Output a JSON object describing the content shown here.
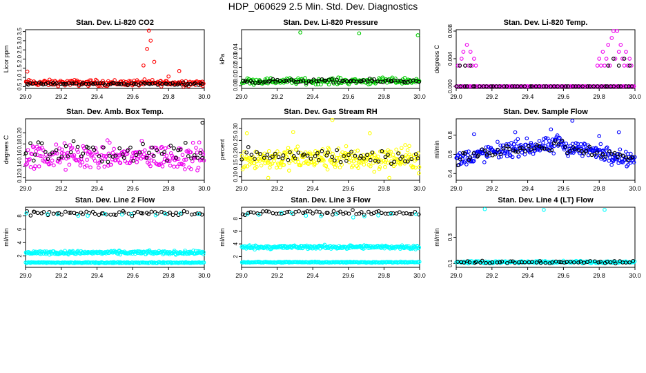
{
  "figure": {
    "title": "HDP_060629  2.5 Min. Std. Dev. Diagnostics"
  },
  "chart_data": [
    {
      "type": "scatter",
      "title": "Stan. Dev. Li-820 CO2",
      "xlabel": "",
      "ylabel": "Licor ppm",
      "xlim": [
        29.0,
        30.0
      ],
      "ylim": [
        0.4,
        3.6
      ],
      "xticks": [
        "29.0",
        "29.2",
        "29.4",
        "29.6",
        "29.8",
        "30.0"
      ],
      "yticks": [
        [
          "0.5",
          0.5
        ],
        [
          "1.0",
          1.0
        ],
        [
          "1.5",
          1.5
        ],
        [
          "2.0",
          2.0
        ],
        [
          "2.5",
          2.5
        ],
        [
          "3.0",
          3.0
        ],
        [
          "3.5",
          3.5
        ]
      ],
      "series": [
        {
          "name": "main",
          "color": "#ff0000",
          "base": 0.7,
          "noise": 0.12,
          "count": 220,
          "extra": [
            [
              29.69,
              3.55
            ],
            [
              29.7,
              3.0
            ],
            [
              29.68,
              2.55
            ],
            [
              29.72,
              1.85
            ],
            [
              29.66,
              1.65
            ],
            [
              29.8,
              1.05
            ],
            [
              29.86,
              1.35
            ],
            [
              29.01,
              1.32
            ]
          ]
        },
        {
          "name": "hourly",
          "color": "#000000",
          "base": 0.65,
          "noise": 0.05,
          "count": 75
        }
      ]
    },
    {
      "type": "scatter",
      "title": "Stan. Dev. Li-820 Pressure",
      "xlabel": "",
      "ylabel": "kPa",
      "xlim": [
        29.0,
        30.0
      ],
      "ylim": [
        -0.003,
        0.061
      ],
      "xticks": [
        "29.0",
        "29.2",
        "29.4",
        "29.6",
        "29.8",
        "30.0"
      ],
      "yticks": [
        [
          "0.00",
          0.0
        ],
        [
          "0.01",
          0.01
        ],
        [
          "0.02",
          0.02
        ],
        [
          "0.03",
          0.03
        ],
        [
          "0.04",
          0.04
        ]
      ],
      "series": [
        {
          "name": "main",
          "color": "#00cc00",
          "base": 0.005,
          "noise": 0.0025,
          "count": 200,
          "extra": [
            [
              29.33,
              0.058
            ],
            [
              29.66,
              0.057
            ],
            [
              29.99,
              0.055
            ]
          ]
        },
        {
          "name": "hourly",
          "color": "#000000",
          "base": 0.005,
          "noise": 0.0015,
          "count": 70
        }
      ]
    },
    {
      "type": "scatter",
      "title": "Stan. Dev. Li-820 Temp.",
      "xlabel": "",
      "ylabel": "degrees C",
      "xlim": [
        29.0,
        30.0
      ],
      "ylim": [
        -0.0003,
        0.0082
      ],
      "xticks": [
        "29.0",
        "29.2",
        "29.4",
        "29.6",
        "29.8",
        "30.0"
      ],
      "yticks": [
        [
          "0.000",
          0.0
        ],
        [
          "0.004",
          0.004
        ],
        [
          "0.008",
          0.008
        ]
      ],
      "series": [
        {
          "name": "main",
          "color": "#ee00ee",
          "base": 0.0,
          "noise": 0.0,
          "count": 150,
          "extra": [
            [
              29.01,
              0.003
            ],
            [
              29.02,
              0.003
            ],
            [
              29.03,
              0.004
            ],
            [
              29.04,
              0.005
            ],
            [
              29.05,
              0.003
            ],
            [
              29.06,
              0.006
            ],
            [
              29.07,
              0.003
            ],
            [
              29.08,
              0.005
            ],
            [
              29.09,
              0.003
            ],
            [
              29.1,
              0.004
            ],
            [
              29.11,
              0.003
            ],
            [
              29.79,
              0.003
            ],
            [
              29.8,
              0.004
            ],
            [
              29.81,
              0.003
            ],
            [
              29.82,
              0.005
            ],
            [
              29.83,
              0.003
            ],
            [
              29.84,
              0.004
            ],
            [
              29.85,
              0.006
            ],
            [
              29.86,
              0.003
            ],
            [
              29.87,
              0.007
            ],
            [
              29.88,
              0.008
            ],
            [
              29.89,
              0.004
            ],
            [
              29.9,
              0.008
            ],
            [
              29.91,
              0.005
            ],
            [
              29.92,
              0.006
            ],
            [
              29.93,
              0.004
            ],
            [
              29.94,
              0.003
            ],
            [
              29.95,
              0.005
            ],
            [
              29.96,
              0.003
            ],
            [
              29.97,
              0.004
            ],
            [
              29.98,
              0.003
            ]
          ]
        },
        {
          "name": "hourly",
          "color": "#000000",
          "base": 0.0,
          "noise": 0.0,
          "count": 50,
          "extra": [
            [
              29.02,
              0.003
            ],
            [
              29.05,
              0.003
            ],
            [
              29.08,
              0.003
            ],
            [
              29.85,
              0.003
            ],
            [
              29.88,
              0.004
            ],
            [
              29.91,
              0.003
            ],
            [
              29.94,
              0.004
            ],
            [
              29.97,
              0.003
            ]
          ]
        }
      ]
    },
    {
      "type": "scatter",
      "title": "Stan. Dev. Amb. Box Temp.",
      "xlabel": "",
      "ylabel": "degrees C",
      "xlim": [
        29.0,
        30.0
      ],
      "ylim": [
        0.115,
        0.225
      ],
      "xticks": [
        "29.0",
        "29.2",
        "29.4",
        "29.6",
        "29.8",
        "30.0"
      ],
      "yticks": [
        [
          "0.12",
          0.12
        ],
        [
          "0.14",
          0.14
        ],
        [
          "0.16",
          0.16
        ],
        [
          "0.18",
          0.18
        ],
        [
          "0.20",
          0.2
        ]
      ],
      "series": [
        {
          "name": "main",
          "color": "#ee00ee",
          "base": 0.157,
          "noise": 0.017,
          "count": 230
        },
        {
          "name": "hourly",
          "color": "#000000",
          "base": 0.165,
          "noise": 0.014,
          "count": 60,
          "extra": [
            [
              29.99,
              0.218
            ]
          ]
        }
      ]
    },
    {
      "type": "scatter",
      "title": "Stan. Dev. Gas Stream RH",
      "xlabel": "",
      "ylabel": "percent",
      "xlim": [
        29.0,
        30.0
      ],
      "ylim": [
        0.085,
        0.34
      ],
      "xticks": [
        "29.0",
        "29.2",
        "29.4",
        "29.6",
        "29.8",
        "30.0"
      ],
      "yticks": [
        [
          "0.10",
          0.1
        ],
        [
          "0.15",
          0.15
        ],
        [
          "0.20",
          0.2
        ],
        [
          "0.25",
          0.25
        ],
        [
          "0.30",
          0.3
        ]
      ],
      "series": [
        {
          "name": "main",
          "color": "#ffff00",
          "base": 0.175,
          "noise": 0.035,
          "count": 280,
          "extra": [
            [
              29.51,
              0.335
            ],
            [
              29.29,
              0.285
            ],
            [
              29.03,
              0.28
            ],
            [
              29.72,
              0.28
            ],
            [
              29.15,
              0.095
            ],
            [
              29.83,
              0.095
            ]
          ]
        },
        {
          "name": "hourly",
          "color": "#000000",
          "base": 0.185,
          "noise": 0.025,
          "count": 60
        }
      ]
    },
    {
      "type": "scatter",
      "title": "Stan. Dev. Sample Flow",
      "xlabel": "",
      "ylabel": "ml/min",
      "xlim": [
        29.0,
        30.0
      ],
      "ylim": [
        0.33,
        0.97
      ],
      "xticks": [
        "29.0",
        "29.2",
        "29.4",
        "29.6",
        "29.8",
        "30.0"
      ],
      "yticks": [
        [
          "0.4",
          0.4
        ],
        [
          "0.6",
          0.6
        ],
        [
          "0.8",
          0.8
        ]
      ],
      "series": [
        {
          "name": "main",
          "color": "#0000ff",
          "base": 0.6,
          "noise": 0.06,
          "count": 280,
          "trend": "hump",
          "extra": [
            [
              29.65,
              0.95
            ],
            [
              29.53,
              0.86
            ],
            [
              29.33,
              0.83
            ],
            [
              29.91,
              0.83
            ],
            [
              29.1,
              0.81
            ],
            [
              29.8,
              0.79
            ]
          ]
        },
        {
          "name": "hourly",
          "color": "#000000",
          "base": 0.6,
          "noise": 0.04,
          "count": 65,
          "trend": "hump"
        }
      ]
    },
    {
      "type": "scatter",
      "title": "Stan. Dev. Line 2 Flow",
      "xlabel": "",
      "ylabel": "ml/min",
      "xlim": [
        29.0,
        30.0
      ],
      "ylim": [
        0.3,
        9.3
      ],
      "xticks": [
        "29.0",
        "29.2",
        "29.4",
        "29.6",
        "29.8",
        "30.0"
      ],
      "yticks": [
        [
          "2",
          2
        ],
        [
          "4",
          4
        ],
        [
          "6",
          6
        ],
        [
          "8",
          8
        ]
      ],
      "series": [
        {
          "name": "upper",
          "color": "#00ffff",
          "base": 2.5,
          "noise": 0.2,
          "count": 250
        },
        {
          "name": "lower",
          "color": "#00ffff",
          "base": 1.0,
          "noise": 0.06,
          "count": 200
        },
        {
          "name": "hourly",
          "color": "#000000",
          "base": 8.4,
          "noise": 0.3,
          "count": 60
        },
        {
          "name": "marks",
          "color": "#00ffff",
          "base": 8.2,
          "noise": 0.2,
          "count": 12
        }
      ]
    },
    {
      "type": "scatter",
      "title": "Stan. Dev. Line 3 Flow",
      "xlabel": "",
      "ylabel": "ml/min",
      "xlim": [
        29.0,
        30.0
      ],
      "ylim": [
        0.3,
        9.8
      ],
      "xticks": [
        "29.0",
        "29.2",
        "29.4",
        "29.6",
        "29.8",
        "30.0"
      ],
      "yticks": [
        [
          "2",
          2
        ],
        [
          "4",
          4
        ],
        [
          "6",
          6
        ],
        [
          "8",
          8
        ]
      ],
      "series": [
        {
          "name": "upper",
          "color": "#00ffff",
          "base": 3.5,
          "noise": 0.22,
          "count": 250
        },
        {
          "name": "lower",
          "color": "#00ffff",
          "base": 1.1,
          "noise": 0.06,
          "count": 200
        },
        {
          "name": "hourly",
          "color": "#000000",
          "base": 8.9,
          "noise": 0.3,
          "count": 60
        },
        {
          "name": "marks",
          "color": "#00ffff",
          "base": 8.6,
          "noise": 0.3,
          "count": 12
        }
      ]
    },
    {
      "type": "scatter",
      "title": "Stan. Dev. Line 4 (LT) Flow",
      "xlabel": "",
      "ylabel": "ml/min",
      "xlim": [
        29.0,
        30.0
      ],
      "ylim": [
        0.07,
        0.53
      ],
      "xticks": [
        "29.0",
        "29.2",
        "29.4",
        "29.6",
        "29.8",
        "30.0"
      ],
      "yticks": [
        [
          "0.1",
          0.1
        ],
        [
          "0.3",
          0.3
        ]
      ],
      "series": [
        {
          "name": "main",
          "color": "#00ffff",
          "base": 0.11,
          "noise": 0.006,
          "count": 230,
          "extra": [
            [
              29.16,
              0.515
            ],
            [
              29.49,
              0.51
            ],
            [
              29.83,
              0.51
            ]
          ]
        },
        {
          "name": "hourly",
          "color": "#000000",
          "base": 0.11,
          "noise": 0.006,
          "count": 55
        }
      ]
    }
  ]
}
